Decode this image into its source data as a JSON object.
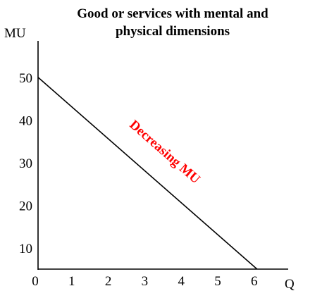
{
  "chart_data": {
    "type": "line",
    "title_lines": [
      "Good or services with mental and",
      "physical dimensions"
    ],
    "xlabel": "Q",
    "ylabel": "MU",
    "xlim": [
      0,
      6.8
    ],
    "ylim": [
      5,
      60
    ],
    "x_ticks": [
      "0",
      "1",
      "2",
      "3",
      "4",
      "5",
      "6"
    ],
    "y_ticks": [
      "10",
      "20",
      "30",
      "40",
      "50"
    ],
    "grid": false,
    "series": [
      {
        "x": [
          0,
          6
        ],
        "y": [
          50,
          5
        ]
      }
    ],
    "annotation": {
      "text": "Decreasing MU",
      "color": "#ff0000"
    },
    "colors": {
      "line": "#000000",
      "axes": "#000000"
    }
  }
}
